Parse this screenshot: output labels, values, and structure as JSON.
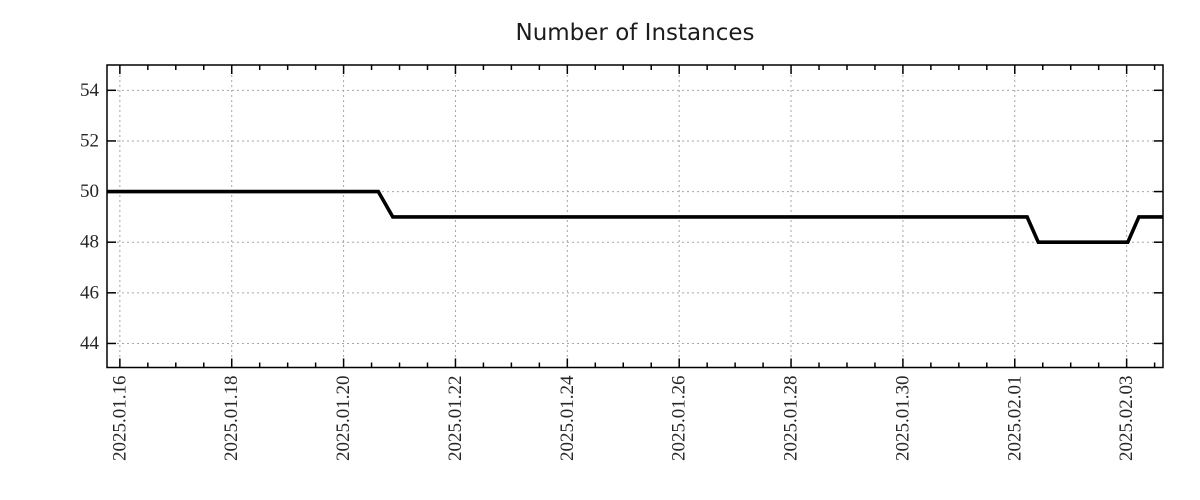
{
  "chart_data": {
    "type": "line",
    "title": "Number of Instances",
    "x_axis": {
      "kind": "time",
      "epoch": "2025-01-16 00:00",
      "unit": "days_since_epoch",
      "range": [
        -0.23,
        18.65
      ],
      "major_ticks": [
        {
          "day": 0,
          "label": "2025.01.16"
        },
        {
          "day": 2,
          "label": "2025.01.18"
        },
        {
          "day": 4,
          "label": "2025.01.20"
        },
        {
          "day": 6,
          "label": "2025.01.22"
        },
        {
          "day": 8,
          "label": "2025.01.24"
        },
        {
          "day": 10,
          "label": "2025.01.26"
        },
        {
          "day": 12,
          "label": "2025.01.28"
        },
        {
          "day": 14,
          "label": "2025.01.30"
        },
        {
          "day": 16,
          "label": "2025.02.01"
        },
        {
          "day": 18,
          "label": "2025.02.03"
        }
      ],
      "minor_tick_step_days": 0.5
    },
    "y_axis": {
      "range": [
        43.05,
        55.0
      ],
      "ticks": [
        44,
        46,
        48,
        50,
        52,
        54
      ]
    },
    "grid": {
      "show": true,
      "style": "dotted",
      "color": "#a6a6a6"
    },
    "legend": {
      "show": false
    },
    "series": [
      {
        "name": "Number of Instances",
        "color": "#000000",
        "line_width": 3.6,
        "points": [
          {
            "time": "2025-01-15 18:30",
            "day": -0.23,
            "value": 50
          },
          {
            "time": "2025-01-20 15:00",
            "day": 4.62,
            "value": 50
          },
          {
            "time": "2025-01-20 21:00",
            "day": 4.88,
            "value": 49
          },
          {
            "time": "2025-02-01 05:00",
            "day": 16.22,
            "value": 49
          },
          {
            "time": "2025-02-01 10:00",
            "day": 16.42,
            "value": 48
          },
          {
            "time": "2025-02-03 00:30",
            "day": 18.02,
            "value": 48
          },
          {
            "time": "2025-02-03 05:00",
            "day": 18.22,
            "value": 49
          },
          {
            "time": "2025-02-03 15:30",
            "day": 18.65,
            "value": 49
          }
        ]
      }
    ]
  },
  "colors": {
    "background": "#ffffff",
    "axis": "#000000",
    "grid": "#a6a6a6",
    "title_text": "#1c1c1c",
    "tick_text": "#262626",
    "series_line": "#000000"
  }
}
